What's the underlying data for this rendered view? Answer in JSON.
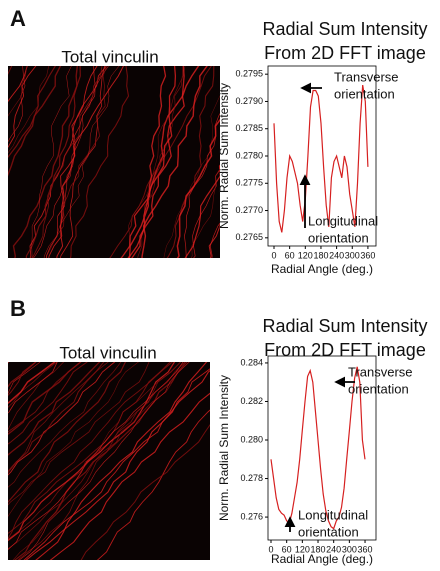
{
  "panels": [
    {
      "label": "A",
      "image_title": "Total vinculin"
    },
    {
      "label": "B",
      "image_title": "Total vinculin"
    }
  ],
  "chart_data": [
    {
      "type": "line",
      "title": [
        "Radial Sum Intensity",
        "From 2D FFT image"
      ],
      "x_label": "Radial Angle (deg.)",
      "y_label": "Norm. Radial Sum Intensity",
      "x": [
        0,
        10,
        20,
        30,
        40,
        50,
        60,
        70,
        80,
        90,
        100,
        110,
        120,
        130,
        140,
        150,
        160,
        170,
        180,
        190,
        200,
        210,
        220,
        230,
        240,
        250,
        260,
        270,
        280,
        290,
        300,
        310,
        320,
        330,
        340,
        350,
        360
      ],
      "series": [
        {
          "color": "#d62020",
          "values": [
            0.2786,
            0.2775,
            0.2768,
            0.2766,
            0.277,
            0.2776,
            0.278,
            0.2779,
            0.2777,
            0.2775,
            0.2771,
            0.2768,
            0.2772,
            0.278,
            0.2789,
            0.2792,
            0.2792,
            0.2791,
            0.2786,
            0.2778,
            0.2771,
            0.2767,
            0.2776,
            0.2779,
            0.278,
            0.2778,
            0.2776,
            0.278,
            0.2778,
            0.2773,
            0.277,
            0.2767,
            0.2775,
            0.2786,
            0.2793,
            0.279,
            0.2778
          ]
        }
      ],
      "xlim": [
        -23,
        391
      ],
      "xticks": [
        0,
        60,
        120,
        180,
        240,
        300,
        360
      ],
      "ylim": [
        0.27635,
        0.27965
      ],
      "yticks": [
        0.2765,
        {
          "value": 0.277,
          "label": "0.2770"
        },
        0.2775,
        {
          "value": 0.278,
          "label": "0.2780"
        },
        0.2785,
        {
          "value": 0.279,
          "label": "0.2790"
        },
        0.2795
      ],
      "annotations": [
        {
          "text": [
            "Transverse",
            "orientation"
          ]
        },
        {
          "text": [
            "Longitudinal",
            "orientation"
          ]
        }
      ]
    },
    {
      "type": "line",
      "title": [
        "Radial Sum Intensity",
        "From 2D FFT image"
      ],
      "x_label": "Radial Angle (deg.)",
      "y_label": "Norm. Radial Sum Intensity",
      "x": [
        0,
        10,
        20,
        30,
        40,
        50,
        60,
        70,
        80,
        90,
        100,
        110,
        120,
        130,
        140,
        150,
        160,
        170,
        180,
        190,
        200,
        210,
        220,
        230,
        240,
        250,
        260,
        270,
        280,
        290,
        300,
        310,
        320,
        330,
        340,
        350,
        360
      ],
      "series": [
        {
          "color": "#d62020",
          "values": [
            0.279,
            0.278,
            0.277,
            0.2764,
            0.2762,
            0.2761,
            0.2758,
            0.2757,
            0.2762,
            0.277,
            0.2778,
            0.279,
            0.2805,
            0.282,
            0.2833,
            0.2836,
            0.283,
            0.2815,
            0.28,
            0.2785,
            0.2772,
            0.2763,
            0.2758,
            0.2755,
            0.2754,
            0.2758,
            0.276,
            0.2765,
            0.2775,
            0.279,
            0.2805,
            0.282,
            0.2832,
            0.2838,
            0.283,
            0.28,
            0.279
          ]
        }
      ],
      "xlim": [
        -11.5,
        402
      ],
      "xticks": [
        0,
        60,
        120,
        180,
        240,
        300,
        360
      ],
      "ylim": [
        0.27481,
        0.28436
      ],
      "yticks": [
        0.276,
        0.278,
        {
          "value": 0.28,
          "label": "0.280"
        },
        0.282,
        0.284
      ],
      "annotations": [
        {
          "text": [
            "Transverse",
            "orientation"
          ]
        },
        {
          "text": [
            "Longitudinal",
            "orientation"
          ]
        }
      ]
    }
  ]
}
